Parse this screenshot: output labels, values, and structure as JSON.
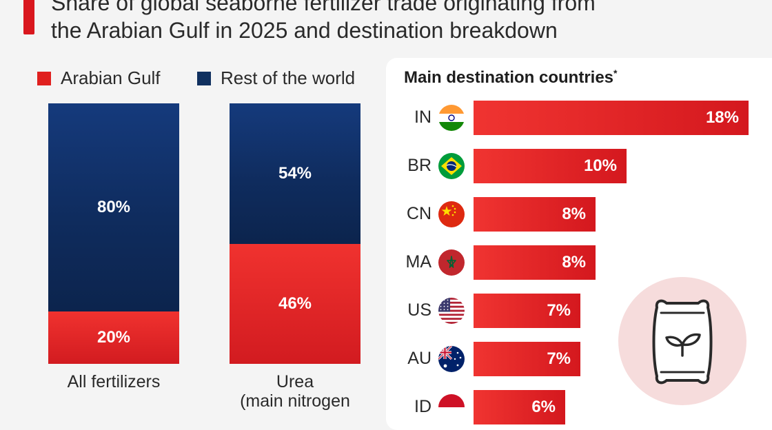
{
  "title": {
    "line1": "Share of global seaborne fertilizer trade originating from",
    "line2": "the Arabian Gulf in 2025 and destination breakdown"
  },
  "colors": {
    "accent": "#d9171e",
    "gulf": "#e0201f",
    "rest": "#10305f"
  },
  "chart_data": [
    {
      "type": "bar",
      "stacked": true,
      "categories": [
        "All fertilizers",
        "Urea (main nitrogen fertilizer)"
      ],
      "category_labels": [
        "All fertilizers",
        "Urea\n(main nitrogen"
      ],
      "series": [
        {
          "name": "Arabian Gulf",
          "values": [
            20,
            46
          ],
          "labels": [
            "20%",
            "46%"
          ]
        },
        {
          "name": "Rest of the world",
          "values": [
            80,
            54
          ],
          "labels": [
            "80%",
            "54%"
          ]
        }
      ],
      "ylim": [
        0,
        100
      ],
      "legend": "top-left"
    },
    {
      "type": "bar",
      "orientation": "horizontal",
      "title": "Main destination countries",
      "title_mark": "*",
      "categories": [
        "IN",
        "BR",
        "CN",
        "MA",
        "US",
        "AU",
        "ID"
      ],
      "values": [
        18,
        10,
        8,
        8,
        7,
        7,
        6
      ],
      "labels": [
        "18%",
        "10%",
        "8%",
        "8%",
        "7%",
        "7%",
        "6%"
      ],
      "flags": [
        "india-flag-icon",
        "brazil-flag-icon",
        "china-flag-icon",
        "morocco-flag-icon",
        "usa-flag-icon",
        "australia-flag-icon",
        "indonesia-flag-icon"
      ]
    }
  ],
  "decor": {
    "icon": "fertilizer-bag-icon"
  }
}
